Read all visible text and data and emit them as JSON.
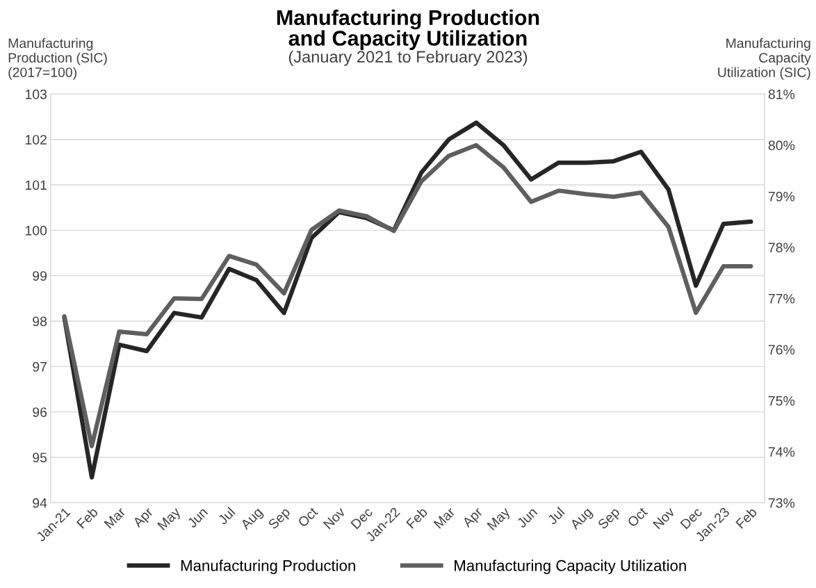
{
  "chart_data": {
    "type": "line",
    "title": "Manufacturing Production\nand Capacity Utilization",
    "subtitle": "(January 2021 to February 2023)",
    "ylabel": "Manufacturing\nProduction (SIC)\n(2017=100)",
    "y2label": "Manufacturing\nCapacity\nUtilization (SIC)",
    "categories": [
      "Jan-21",
      "Feb",
      "Mar",
      "Apr",
      "May",
      "Jun",
      "Jul",
      "Aug",
      "Sep",
      "Oct",
      "Nov",
      "Dec",
      "Jan-22",
      "Feb",
      "Mar",
      "Apr",
      "May",
      "Jun",
      "Jul",
      "Aug",
      "Sep",
      "Oct",
      "Nov",
      "Dec",
      "Jan-23",
      "Feb"
    ],
    "series": [
      {
        "name": "Manufacturing Production",
        "color": "#262626",
        "values": [
          98.08,
          94.56,
          97.48,
          97.34,
          98.18,
          98.08,
          99.15,
          98.9,
          98.18,
          99.83,
          100.4,
          100.27,
          100.0,
          101.27,
          102.0,
          102.37,
          101.87,
          101.12,
          101.49,
          101.49,
          101.52,
          101.73,
          100.9,
          98.78,
          100.14,
          100.19
        ]
      },
      {
        "name": "Manufacturing Capacity Utilization",
        "color": "#5f5f5f",
        "axis": "y2",
        "values": [
          76.65,
          74.11,
          76.35,
          76.3,
          77.0,
          76.99,
          77.83,
          77.66,
          77.1,
          78.34,
          78.72,
          78.61,
          78.32,
          79.29,
          79.79,
          80.0,
          79.56,
          78.89,
          79.11,
          79.04,
          78.99,
          79.07,
          78.4,
          76.72,
          77.63,
          77.63
        ]
      }
    ],
    "ylim": [
      94,
      103
    ],
    "yticks": [
      94,
      95,
      96,
      97,
      98,
      99,
      100,
      101,
      102,
      103
    ],
    "y2lim": [
      73,
      81
    ],
    "y2ticks": [
      {
        "value": 73,
        "label": "73%"
      },
      {
        "value": 74,
        "label": "74%"
      },
      {
        "value": 75,
        "label": "75%"
      },
      {
        "value": 76,
        "label": "76%"
      },
      {
        "value": 77,
        "label": "77%"
      },
      {
        "value": 78,
        "label": "78%"
      },
      {
        "value": 79,
        "label": "79%"
      },
      {
        "value": 80,
        "label": "80%"
      },
      {
        "value": 81,
        "label": "81%"
      }
    ],
    "grid": "y",
    "legend": "bottom",
    "marker": "none",
    "line_style": "solid"
  }
}
